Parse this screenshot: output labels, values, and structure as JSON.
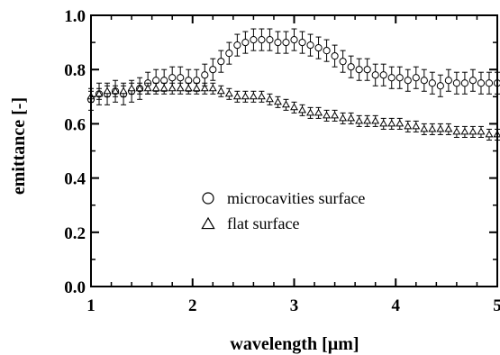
{
  "chart_data": {
    "type": "scatter",
    "xlabel": "wavelength [µm]",
    "ylabel": "emittance [-]",
    "xlim": [
      1,
      5
    ],
    "ylim": [
      0.0,
      1.0
    ],
    "x_ticks": [
      "1",
      "2",
      "3",
      "4",
      "5"
    ],
    "y_ticks": [
      "0.0",
      "0.2",
      "0.4",
      "0.6",
      "0.8",
      "1.0"
    ],
    "grid": false,
    "legend_position": "center",
    "series": [
      {
        "name": "microcavities surface",
        "marker": "circle",
        "x": [
          1.0,
          1.08,
          1.16,
          1.24,
          1.32,
          1.4,
          1.48,
          1.56,
          1.64,
          1.72,
          1.8,
          1.88,
          1.96,
          2.04,
          2.12,
          2.2,
          2.28,
          2.36,
          2.44,
          2.52,
          2.6,
          2.68,
          2.76,
          2.84,
          2.92,
          3.0,
          3.08,
          3.16,
          3.24,
          3.32,
          3.4,
          3.48,
          3.56,
          3.64,
          3.72,
          3.8,
          3.88,
          3.96,
          4.04,
          4.12,
          4.2,
          4.28,
          4.36,
          4.44,
          4.52,
          4.6,
          4.68,
          4.76,
          4.84,
          4.92,
          5.0
        ],
        "values": [
          0.69,
          0.71,
          0.71,
          0.72,
          0.71,
          0.72,
          0.73,
          0.75,
          0.76,
          0.76,
          0.77,
          0.77,
          0.76,
          0.76,
          0.78,
          0.8,
          0.83,
          0.86,
          0.89,
          0.9,
          0.91,
          0.91,
          0.91,
          0.9,
          0.9,
          0.91,
          0.9,
          0.89,
          0.88,
          0.87,
          0.85,
          0.83,
          0.81,
          0.8,
          0.8,
          0.78,
          0.78,
          0.77,
          0.77,
          0.76,
          0.77,
          0.76,
          0.75,
          0.74,
          0.76,
          0.75,
          0.75,
          0.76,
          0.75,
          0.75,
          0.75
        ],
        "error": 0.04
      },
      {
        "name": "flat surface",
        "marker": "triangle",
        "x": [
          1.0,
          1.08,
          1.16,
          1.24,
          1.32,
          1.4,
          1.48,
          1.56,
          1.64,
          1.72,
          1.8,
          1.88,
          1.96,
          2.04,
          2.12,
          2.2,
          2.28,
          2.36,
          2.44,
          2.52,
          2.6,
          2.68,
          2.76,
          2.84,
          2.92,
          3.0,
          3.08,
          3.16,
          3.24,
          3.32,
          3.4,
          3.48,
          3.56,
          3.64,
          3.72,
          3.8,
          3.88,
          3.96,
          4.04,
          4.12,
          4.2,
          4.28,
          4.36,
          4.44,
          4.52,
          4.6,
          4.68,
          4.76,
          4.84,
          4.92,
          5.0
        ],
        "values": [
          0.7,
          0.71,
          0.72,
          0.72,
          0.72,
          0.73,
          0.73,
          0.73,
          0.73,
          0.73,
          0.73,
          0.73,
          0.73,
          0.73,
          0.73,
          0.73,
          0.72,
          0.71,
          0.7,
          0.7,
          0.7,
          0.7,
          0.69,
          0.68,
          0.67,
          0.66,
          0.65,
          0.64,
          0.64,
          0.63,
          0.63,
          0.62,
          0.62,
          0.61,
          0.61,
          0.61,
          0.6,
          0.6,
          0.6,
          0.59,
          0.59,
          0.58,
          0.58,
          0.58,
          0.58,
          0.57,
          0.57,
          0.57,
          0.57,
          0.56,
          0.56
        ],
        "error": 0.02
      }
    ]
  }
}
